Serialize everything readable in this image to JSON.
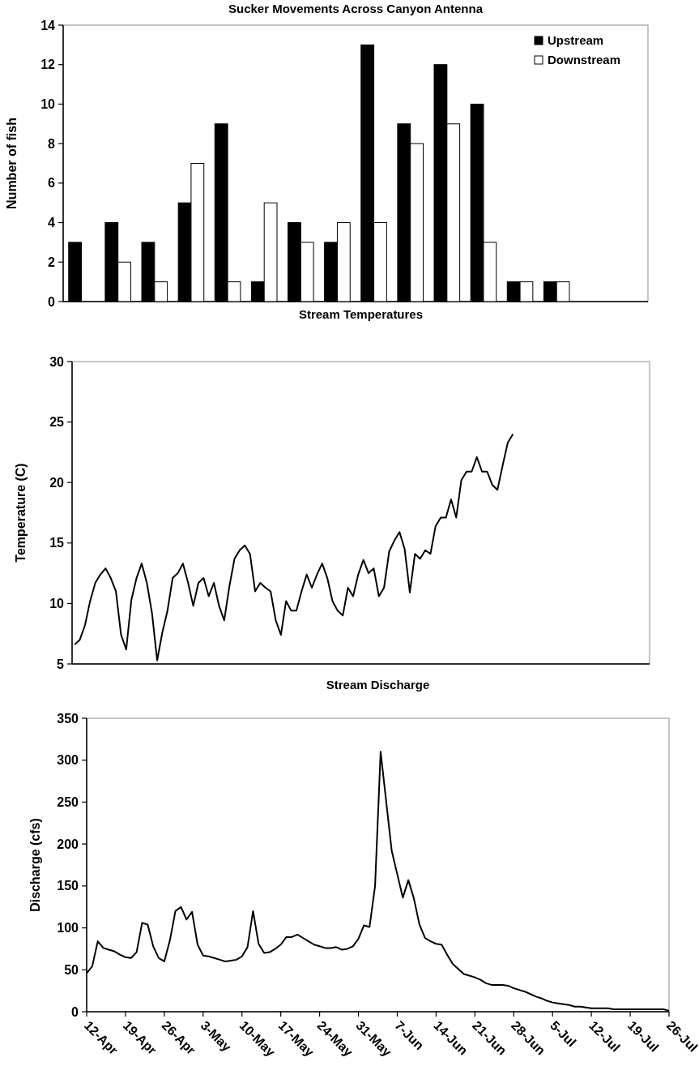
{
  "chart_data": [
    {
      "type": "bar",
      "title": "Sucker Movements Across Canyon Antenna",
      "ylabel": "Number of fish",
      "categories": [
        null,
        null,
        null,
        null,
        null,
        null,
        null,
        null,
        null,
        null,
        null,
        null,
        null,
        null,
        null,
        null
      ],
      "series": [
        {
          "name": "Upstream",
          "color": "#000000",
          "values": [
            3,
            4,
            3,
            5,
            9,
            1,
            4,
            3,
            13,
            9,
            12,
            10,
            1,
            1,
            0,
            0
          ]
        },
        {
          "name": "Downstream",
          "color": "#ffffff",
          "values": [
            0,
            2,
            1,
            7,
            1,
            5,
            3,
            4,
            4,
            8,
            9,
            3,
            1,
            1,
            0,
            0
          ]
        }
      ],
      "ylim": [
        0,
        14
      ],
      "yticks": [
        0,
        2,
        4,
        6,
        8,
        10,
        12,
        14
      ],
      "legend": "top right",
      "grid": false
    },
    {
      "type": "line",
      "title": "Stream Temperatures",
      "ylabel": "Temperature (C)",
      "categories": [
        null,
        null,
        null,
        null,
        null,
        null,
        null,
        null,
        null,
        null,
        null,
        null,
        null,
        null,
        null,
        null,
        null,
        null,
        null,
        null,
        null,
        null,
        null,
        null,
        null,
        null,
        null,
        null,
        null,
        null,
        null,
        null,
        null,
        null,
        null,
        null,
        null,
        null,
        null,
        null,
        null,
        null,
        null,
        null,
        null,
        null,
        null,
        null,
        null,
        null,
        null,
        null,
        null,
        null,
        null,
        null,
        null,
        null,
        null,
        null,
        null,
        null,
        null,
        null,
        null,
        null,
        null,
        null,
        null,
        null,
        null,
        null,
        null,
        null,
        null,
        null,
        null,
        null,
        null,
        null,
        null,
        null,
        null,
        null,
        null,
        null,
        null,
        null,
        null,
        null,
        null,
        null,
        null,
        null,
        null,
        null,
        null,
        null,
        null,
        null,
        null,
        null,
        null,
        null,
        null,
        null,
        null,
        null,
        null,
        null,
        null,
        null
      ],
      "series": [
        {
          "color": "#000000",
          "values": [
            6.6,
            7.0,
            8.2,
            10.2,
            11.7,
            12.4,
            12.9,
            12.1,
            11.0,
            7.4,
            6.2,
            10.3,
            12.1,
            13.3,
            11.7,
            9.2,
            5.3,
            7.6,
            9.4,
            12.1,
            12.5,
            13.3,
            11.7,
            9.8,
            11.7,
            12.1,
            10.6,
            11.7,
            9.8,
            8.6,
            11.4,
            13.7,
            14.4,
            14.8,
            14.1,
            11.0,
            11.7,
            11.3,
            11.0,
            8.6,
            7.4,
            10.2,
            9.4,
            9.4,
            11.0,
            12.4,
            11.3,
            12.4,
            13.3,
            12.1,
            10.2,
            9.4,
            9.0,
            11.3,
            10.6,
            12.4,
            13.6,
            12.5,
            12.9,
            10.6,
            11.3,
            14.3,
            15.2,
            15.9,
            14.5,
            10.9,
            14.1,
            13.7,
            14.4,
            14.1,
            16.4,
            17.1,
            17.1,
            18.6,
            17.1,
            20.2,
            20.9,
            20.9,
            22.1,
            20.9,
            20.9,
            19.8,
            19.4,
            21.4,
            23.3,
            24.0,
            null,
            null,
            null,
            null,
            null,
            null,
            null,
            null,
            null,
            null,
            null,
            null,
            null,
            null,
            null,
            null,
            null,
            null,
            null,
            null,
            null,
            null,
            null,
            null,
            null,
            null
          ]
        }
      ],
      "ylim": [
        5,
        30
      ],
      "yticks": [
        5,
        10,
        15,
        20,
        25,
        30
      ],
      "marker": "none",
      "line_style": "solid",
      "grid": false,
      "tick_labels": "y"
    },
    {
      "type": "line",
      "title": "Stream Discharge",
      "ylabel": "Discharge (cfs)",
      "x": [
        "--04-12",
        "--04-13",
        "--04-14",
        "--04-15",
        "--04-16",
        "--04-17",
        "--04-18",
        "--04-19",
        "--04-20",
        "--04-21",
        "--04-22",
        "--04-23",
        "--04-24",
        "--04-25",
        "--04-26",
        "--04-27",
        "--04-28",
        "--04-29",
        "--04-30",
        "--05-01",
        "--05-02",
        "--05-03",
        "--05-04",
        "--05-05",
        "--05-06",
        "--05-07",
        "--05-08",
        "--05-09",
        "--05-10",
        "--05-11",
        "--05-12",
        "--05-13",
        "--05-14",
        "--05-15",
        "--05-16",
        "--05-17",
        "--05-18",
        "--05-19",
        "--05-20",
        "--05-21",
        "--05-22",
        "--05-23",
        "--05-24",
        "--05-25",
        "--05-26",
        "--05-27",
        "--05-28",
        "--05-29",
        "--05-30",
        "--05-31",
        "--06-01",
        "--06-02",
        "--06-03",
        "--06-04",
        "--06-05",
        "--06-06",
        "--06-07",
        "--06-08",
        "--06-09",
        "--06-10",
        "--06-11",
        "--06-12",
        "--06-13",
        "--06-14",
        "--06-15",
        "--06-16",
        "--06-17",
        "--06-18",
        "--06-19",
        "--06-20",
        "--06-21",
        "--06-22",
        "--06-23",
        "--06-24",
        "--06-25",
        "--06-26",
        "--06-27",
        "--06-28",
        "--06-29",
        "--06-30",
        "--07-01",
        "--07-02",
        "--07-03",
        "--07-04",
        "--07-05",
        "--07-06",
        "--07-07",
        "--07-08",
        "--07-09",
        "--07-10",
        "--07-11",
        "--07-12",
        "--07-13",
        "--07-14",
        "--07-15",
        "--07-16",
        "--07-17",
        "--07-18",
        "--07-19",
        "--07-20",
        "--07-21",
        "--07-22",
        "--07-23",
        "--07-24",
        "--07-25",
        "--07-26"
      ],
      "series": [
        {
          "color": "#000000",
          "values": [
            46,
            54,
            84,
            76,
            74,
            72,
            68,
            65,
            64,
            71,
            106,
            104,
            78,
            64,
            60,
            85,
            120,
            125,
            110,
            119,
            80,
            67,
            66,
            64,
            62,
            60,
            61,
            62,
            66,
            77,
            120,
            81,
            70,
            71,
            75,
            80,
            89,
            89,
            92,
            88,
            84,
            80,
            78,
            76,
            76,
            77,
            74,
            75,
            78,
            87,
            103,
            101,
            150,
            310,
            251,
            192,
            164,
            136,
            157,
            135,
            104,
            88,
            84,
            81,
            80,
            68,
            57,
            51,
            45,
            43,
            41,
            38,
            34,
            32,
            32,
            32,
            31,
            28,
            26,
            24,
            21,
            18,
            16,
            13,
            11,
            10,
            9,
            8,
            6,
            6,
            5,
            4,
            4,
            4,
            4,
            3,
            3,
            3,
            3,
            3,
            3,
            3,
            3,
            3,
            3,
            1
          ]
        }
      ],
      "xlim": [
        "--04-12",
        "--07-26"
      ],
      "xticks": [
        {
          "value": "--04-12",
          "label": "12-Apr"
        },
        {
          "value": "--04-19",
          "label": "19-Apr"
        },
        {
          "value": "--04-26",
          "label": "26-Apr"
        },
        {
          "value": "--05-03",
          "label": "3-May"
        },
        {
          "value": "--05-10",
          "label": "10-May"
        },
        {
          "value": "--05-17",
          "label": "17-May"
        },
        {
          "value": "--05-24",
          "label": "24-May"
        },
        {
          "value": "--05-31",
          "label": "31-May"
        },
        {
          "value": "--06-07",
          "label": "7-Jun"
        },
        {
          "value": "--06-14",
          "label": "14-Jun"
        },
        {
          "value": "--06-21",
          "label": "21-Jun"
        },
        {
          "value": "--06-28",
          "label": "28-Jun"
        },
        {
          "value": "--07-05",
          "label": "5-Jul"
        },
        {
          "value": "--07-12",
          "label": "12-Jul"
        },
        {
          "value": "--07-19",
          "label": "19-Jul"
        },
        {
          "value": "--07-26",
          "label": "26-Jul"
        }
      ],
      "ylim": [
        0,
        350
      ],
      "yticks": [
        0,
        50,
        100,
        150,
        200,
        250,
        300,
        350
      ],
      "marker": "none",
      "line_style": "solid",
      "grid": false
    }
  ]
}
